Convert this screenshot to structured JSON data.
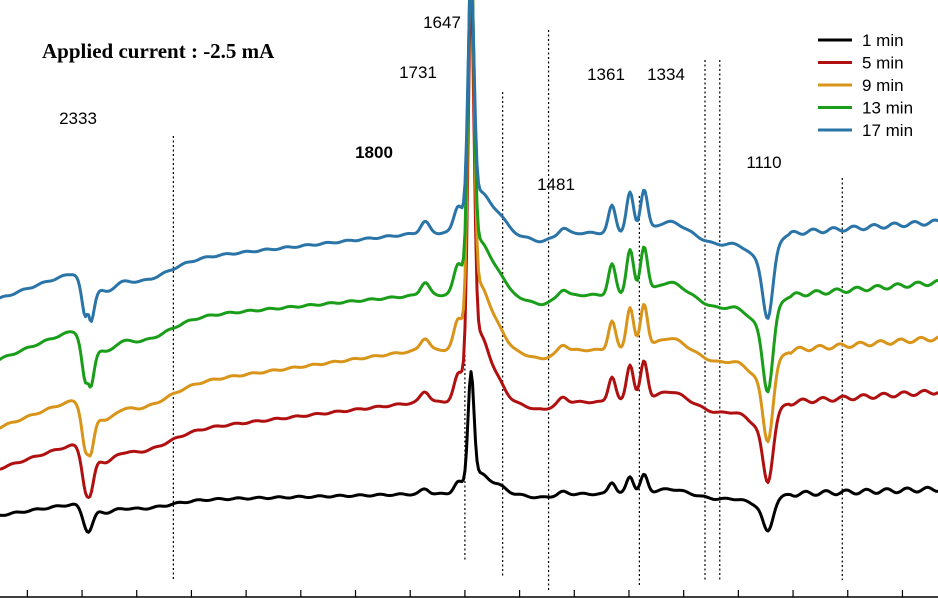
{
  "chart_data": {
    "type": "line",
    "title": "Applied current : -2.5 mA",
    "xlabel": "",
    "ylabel": "",
    "x_reversed": true,
    "xlim": [
      2650,
      935
    ],
    "peak_markers": [
      {
        "label": "2333",
        "x": 2333,
        "bold": false
      },
      {
        "label": "1800",
        "x": 1800,
        "bold": true
      },
      {
        "label": "1731",
        "x": 1731,
        "bold": false
      },
      {
        "label": "1647",
        "x": 1647,
        "bold": false
      },
      {
        "label": "1481",
        "x": 1481,
        "bold": false
      },
      {
        "label": "1361",
        "x": 1361,
        "bold": false
      },
      {
        "label": "1334",
        "x": 1334,
        "bold": false
      },
      {
        "label": "1110",
        "x": 1110,
        "bold": false
      }
    ],
    "series": [
      {
        "name": "1 min",
        "color": "#000000",
        "baseline": 502,
        "amp": 0.35,
        "drift": 8,
        "bluefill": 0
      },
      {
        "name": "5 min",
        "color": "#b01010",
        "baseline": 440,
        "amp": 0.75,
        "drift": 38,
        "bluefill": 0.3
      },
      {
        "name": "9 min",
        "color": "#d8951a",
        "baseline": 395,
        "amp": 0.85,
        "drift": 45,
        "bluefill": 0.5
      },
      {
        "name": "13 min",
        "color": "#1a9e1a",
        "baseline": 325,
        "amp": 0.9,
        "drift": 30,
        "bluefill": 0.7
      },
      {
        "name": "17 min",
        "color": "#2a74a8",
        "baseline": 268,
        "amp": 0.8,
        "drift": 35,
        "bluefill": 1.0
      }
    ],
    "legend": {
      "position": "top-right"
    },
    "grid": false
  }
}
